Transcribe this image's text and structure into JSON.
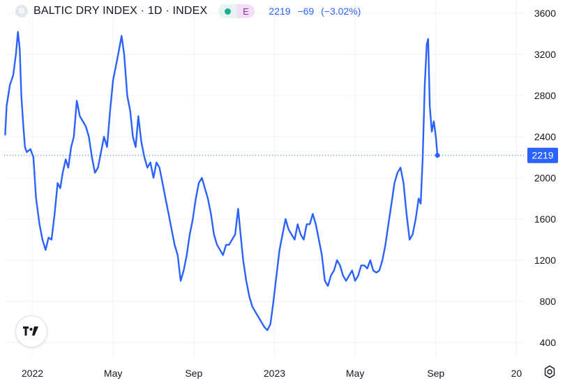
{
  "header": {
    "symbol_icon_letter": "B",
    "title": "BALTIC DRY INDEX · 1D · INDEX",
    "source_badge": "E",
    "last": "2219",
    "change": "−69",
    "change_pct": "(−3.02%)"
  },
  "price_label": "2219",
  "colors": {
    "line": "#2962ff",
    "grid": "#f0f3fa",
    "text": "#131722",
    "axis_text": "#131722"
  },
  "icons": {
    "logo": "tradingview-logo-icon",
    "settings": "settings-gear-icon"
  },
  "chart_data": {
    "type": "line",
    "title": "BALTIC DRY INDEX",
    "xlabel": "",
    "ylabel": "",
    "ylim": [
      250,
      3700
    ],
    "y_ticks": [
      400,
      800,
      1200,
      1600,
      2000,
      2400,
      2800,
      3200,
      3600
    ],
    "x_ticks": [
      {
        "label": "2022",
        "x": 0.5
      },
      {
        "label": "May",
        "x": 4.5
      },
      {
        "label": "Sep",
        "x": 8.5
      },
      {
        "label": "2023",
        "x": 12.5
      },
      {
        "label": "May",
        "x": 16.5
      },
      {
        "label": "Sep",
        "x": 20.5
      },
      {
        "label": "20",
        "x": 24.5
      }
    ],
    "xlim": [
      -0.9,
      24.9
    ],
    "grid": true,
    "last_value": 2219,
    "series": [
      {
        "values": [
          [
            -0.85,
            2420
          ],
          [
            -0.78,
            2700
          ],
          [
            -0.62,
            2900
          ],
          [
            -0.45,
            3000
          ],
          [
            -0.32,
            3200
          ],
          [
            -0.22,
            3420
          ],
          [
            -0.13,
            3250
          ],
          [
            -0.05,
            2800
          ],
          [
            0.05,
            2500
          ],
          [
            0.13,
            2300
          ],
          [
            0.22,
            2250
          ],
          [
            0.4,
            2280
          ],
          [
            0.55,
            2200
          ],
          [
            0.68,
            1800
          ],
          [
            0.85,
            1550
          ],
          [
            1.0,
            1400
          ],
          [
            1.15,
            1300
          ],
          [
            1.3,
            1420
          ],
          [
            1.45,
            1400
          ],
          [
            1.6,
            1650
          ],
          [
            1.75,
            1950
          ],
          [
            1.88,
            1900
          ],
          [
            2.0,
            2050
          ],
          [
            2.15,
            2180
          ],
          [
            2.28,
            2100
          ],
          [
            2.42,
            2300
          ],
          [
            2.55,
            2400
          ],
          [
            2.7,
            2750
          ],
          [
            2.85,
            2600
          ],
          [
            3.0,
            2550
          ],
          [
            3.15,
            2500
          ],
          [
            3.3,
            2400
          ],
          [
            3.45,
            2200
          ],
          [
            3.6,
            2050
          ],
          [
            3.75,
            2100
          ],
          [
            3.9,
            2250
          ],
          [
            4.05,
            2400
          ],
          [
            4.2,
            2300
          ],
          [
            4.35,
            2650
          ],
          [
            4.5,
            2950
          ],
          [
            4.65,
            3100
          ],
          [
            4.8,
            3250
          ],
          [
            4.92,
            3380
          ],
          [
            5.05,
            3200
          ],
          [
            5.2,
            2800
          ],
          [
            5.35,
            2650
          ],
          [
            5.48,
            2400
          ],
          [
            5.62,
            2300
          ],
          [
            5.75,
            2600
          ],
          [
            5.9,
            2350
          ],
          [
            6.05,
            2200
          ],
          [
            6.2,
            2100
          ],
          [
            6.35,
            2150
          ],
          [
            6.5,
            2000
          ],
          [
            6.65,
            2150
          ],
          [
            6.8,
            2100
          ],
          [
            6.95,
            1950
          ],
          [
            7.1,
            1800
          ],
          [
            7.25,
            1650
          ],
          [
            7.4,
            1500
          ],
          [
            7.55,
            1350
          ],
          [
            7.7,
            1250
          ],
          [
            7.85,
            1000
          ],
          [
            8.0,
            1100
          ],
          [
            8.15,
            1250
          ],
          [
            8.3,
            1450
          ],
          [
            8.45,
            1600
          ],
          [
            8.6,
            1800
          ],
          [
            8.75,
            1950
          ],
          [
            8.9,
            2000
          ],
          [
            9.05,
            1900
          ],
          [
            9.2,
            1800
          ],
          [
            9.35,
            1650
          ],
          [
            9.5,
            1450
          ],
          [
            9.65,
            1350
          ],
          [
            9.8,
            1300
          ],
          [
            9.95,
            1250
          ],
          [
            10.1,
            1350
          ],
          [
            10.25,
            1350
          ],
          [
            10.4,
            1400
          ],
          [
            10.55,
            1450
          ],
          [
            10.7,
            1700
          ],
          [
            10.82,
            1450
          ],
          [
            10.95,
            1200
          ],
          [
            11.1,
            1000
          ],
          [
            11.25,
            850
          ],
          [
            11.4,
            750
          ],
          [
            11.55,
            700
          ],
          [
            11.7,
            650
          ],
          [
            11.85,
            600
          ],
          [
            12.0,
            550
          ],
          [
            12.15,
            520
          ],
          [
            12.3,
            580
          ],
          [
            12.45,
            800
          ],
          [
            12.6,
            1050
          ],
          [
            12.75,
            1300
          ],
          [
            12.9,
            1450
          ],
          [
            13.05,
            1600
          ],
          [
            13.2,
            1500
          ],
          [
            13.35,
            1450
          ],
          [
            13.5,
            1400
          ],
          [
            13.65,
            1550
          ],
          [
            13.8,
            1450
          ],
          [
            13.95,
            1400
          ],
          [
            14.1,
            1550
          ],
          [
            14.25,
            1550
          ],
          [
            14.4,
            1650
          ],
          [
            14.55,
            1550
          ],
          [
            14.7,
            1400
          ],
          [
            14.85,
            1250
          ],
          [
            15.0,
            1000
          ],
          [
            15.15,
            950
          ],
          [
            15.3,
            1050
          ],
          [
            15.45,
            1100
          ],
          [
            15.6,
            1200
          ],
          [
            15.75,
            1150
          ],
          [
            15.9,
            1050
          ],
          [
            16.05,
            1000
          ],
          [
            16.2,
            1050
          ],
          [
            16.35,
            1100
          ],
          [
            16.5,
            1000
          ],
          [
            16.65,
            1050
          ],
          [
            16.8,
            1150
          ],
          [
            16.95,
            1150
          ],
          [
            17.1,
            1120
          ],
          [
            17.25,
            1200
          ],
          [
            17.4,
            1100
          ],
          [
            17.55,
            1080
          ],
          [
            17.7,
            1100
          ],
          [
            17.85,
            1200
          ],
          [
            18.0,
            1350
          ],
          [
            18.15,
            1550
          ],
          [
            18.3,
            1750
          ],
          [
            18.45,
            1950
          ],
          [
            18.6,
            2050
          ],
          [
            18.75,
            2100
          ],
          [
            18.9,
            1950
          ],
          [
            19.05,
            1650
          ],
          [
            19.2,
            1400
          ],
          [
            19.35,
            1450
          ],
          [
            19.5,
            1600
          ],
          [
            19.65,
            1800
          ],
          [
            19.75,
            1750
          ],
          [
            19.85,
            2200
          ],
          [
            19.95,
            2900
          ],
          [
            20.05,
            3300
          ],
          [
            20.12,
            3350
          ],
          [
            20.2,
            2700
          ],
          [
            20.3,
            2450
          ],
          [
            20.4,
            2550
          ],
          [
            20.5,
            2400
          ],
          [
            20.58,
            2219
          ]
        ]
      }
    ]
  }
}
